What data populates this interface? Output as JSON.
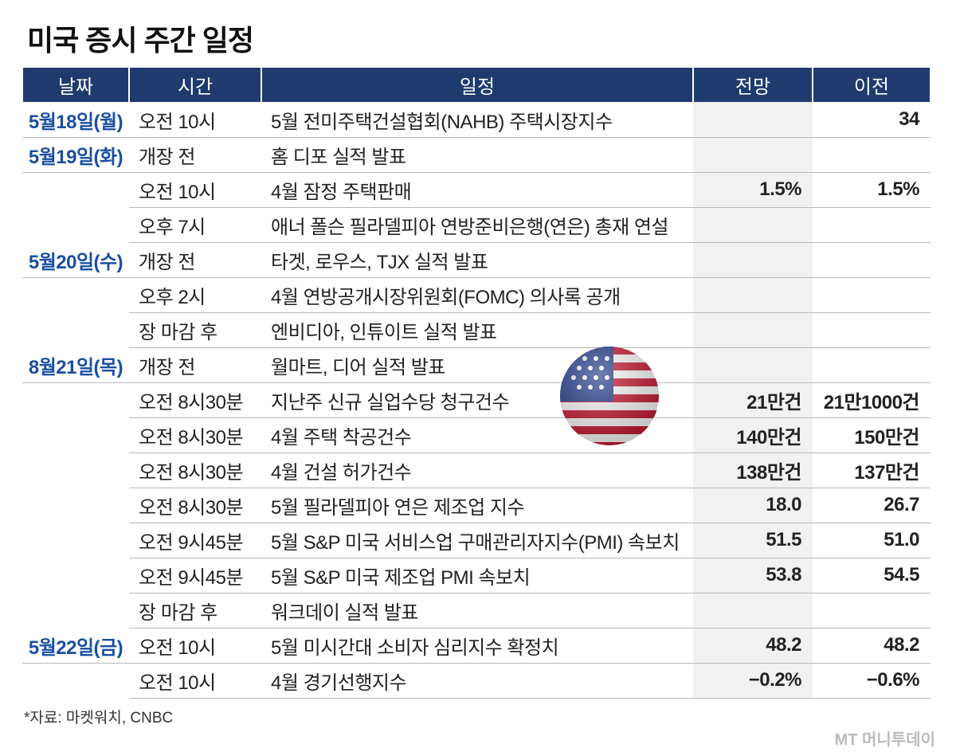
{
  "title": "미국 증시 주간 일정",
  "table": {
    "header": [
      "날짜",
      "시간",
      "일정",
      "전망",
      "이전"
    ],
    "rows": [
      [
        "5월18일(월)",
        "오전 10시",
        "5월 전미주택건설협회(NAHB) 주택시장지수",
        null,
        "34"
      ],
      [
        "5월19일(화)",
        "개장 전",
        "홈 디포 실적 발표",
        null,
        null
      ],
      [
        null,
        "오전 10시",
        "4월 잠정 주택판매",
        "1.5%",
        "1.5%"
      ],
      [
        null,
        "오후 7시",
        "애너 폴슨 필라델피아 연방준비은행(연은) 총재 연설",
        null,
        null
      ],
      [
        "5월20일(수)",
        "개장 전",
        "타겟, 로우스, TJX 실적 발표",
        null,
        null
      ],
      [
        null,
        "오후 2시",
        "4월 연방공개시장위원회(FOMC) 의사록 공개",
        null,
        null
      ],
      [
        null,
        "장 마감 후",
        "엔비디아, 인튜이트 실적 발표",
        null,
        null
      ],
      [
        "8월21일(목)",
        "개장 전",
        "월마트, 디어 실적 발표",
        null,
        null
      ],
      [
        null,
        "오전 8시30분",
        "지난주 신규 실업수당 청구건수",
        "21만건",
        "21만1000건"
      ],
      [
        null,
        "오전 8시30분",
        "4월 주택 착공건수",
        "140만건",
        "150만건"
      ],
      [
        null,
        "오전 8시30분",
        "4월 건설 허가건수",
        "138만건",
        "137만건"
      ],
      [
        null,
        "오전 8시30분",
        "5월 필라델피아 연은 제조업 지수",
        "18.0",
        "26.7"
      ],
      [
        null,
        "오전 9시45분",
        "5월 S&P 미국 서비스업 구매관리자지수(PMI) 속보치",
        "51.5",
        "51.0"
      ],
      [
        null,
        "오전 9시45분",
        "5월 S&P 미국 제조업 PMI 속보치",
        "53.8",
        "54.5"
      ],
      [
        null,
        "장 마감 후",
        "워크데이 실적 발표",
        null,
        null
      ],
      [
        "5월22일(금)",
        "오전 10시",
        "5월 미시간대 소비자 심리지수 확정치",
        "48.2",
        "48.2"
      ],
      [
        null,
        "오전 10시",
        "4월 경기선행지수",
        "−0.2%",
        "−0.6%"
      ]
    ]
  },
  "source": "*자료: 마켓워치, CNBC",
  "watermark": "MT 머니투데이"
}
